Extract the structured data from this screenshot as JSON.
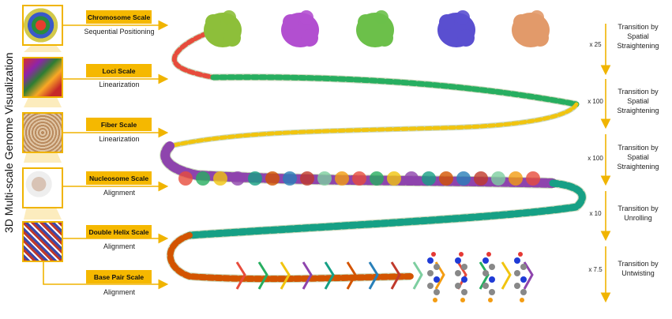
{
  "title": "3D Multi-scale Genome Visualization",
  "scales": [
    {
      "label": "Chromosome Scale",
      "caption": "Sequential Positioning"
    },
    {
      "label": "Loci Scale",
      "caption": "Linearization"
    },
    {
      "label": "Fiber Scale",
      "caption": "Linearization"
    },
    {
      "label": "Nucleosome Scale",
      "caption": "Alignment"
    },
    {
      "label": "Double Helix Scale",
      "caption": "Alignment"
    },
    {
      "label": "Base Pair Scale",
      "caption": "Alignment"
    }
  ],
  "transitions": [
    {
      "factor": "x 25",
      "label": "Transition by Spatial Straightening"
    },
    {
      "factor": "x 100",
      "label": "Transition by Spatial Straightening"
    },
    {
      "factor": "x 100",
      "label": "Transition by Spatial Straightening"
    },
    {
      "factor": "x 10",
      "label": "Transition by Unrolling"
    },
    {
      "factor": "x 7.5",
      "label": "Transition by Untwisting"
    }
  ],
  "colors": {
    "accent": "#f5b800",
    "chromosomes": [
      "#8dbf3a",
      "#b24fd0",
      "#6cc04a",
      "#5a4fd0",
      "#e29a6a"
    ]
  }
}
